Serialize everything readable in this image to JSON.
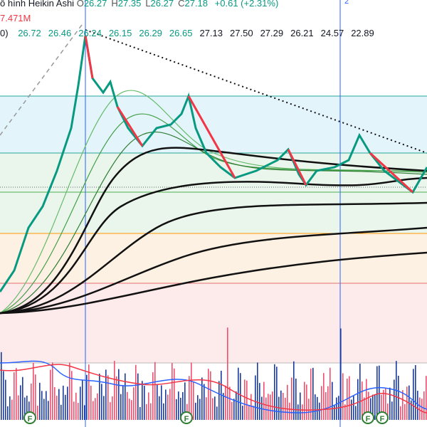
{
  "header": {
    "title": "ô hình Heikin Ashi",
    "ohlc": [
      {
        "label": "O",
        "value": "26.27"
      },
      {
        "label": "H",
        "value": "27.35"
      },
      {
        "label": "L",
        "value": "26.27"
      },
      {
        "label": "C",
        "value": "27.18"
      }
    ],
    "change": "+0.61 (+2.31%)",
    "marker": "2"
  },
  "volume_label": "7.471M",
  "ma_row": {
    "prefix": "0)",
    "green_values": [
      "26.72",
      "26.46",
      "26.24",
      "26.15",
      "26.29",
      "26.65"
    ],
    "black_values": [
      "27.13",
      "27.50",
      "27.29",
      "26.21",
      "24.57",
      "22.89"
    ]
  },
  "event_markers": [
    "F",
    "F",
    "F",
    "F"
  ]
}
